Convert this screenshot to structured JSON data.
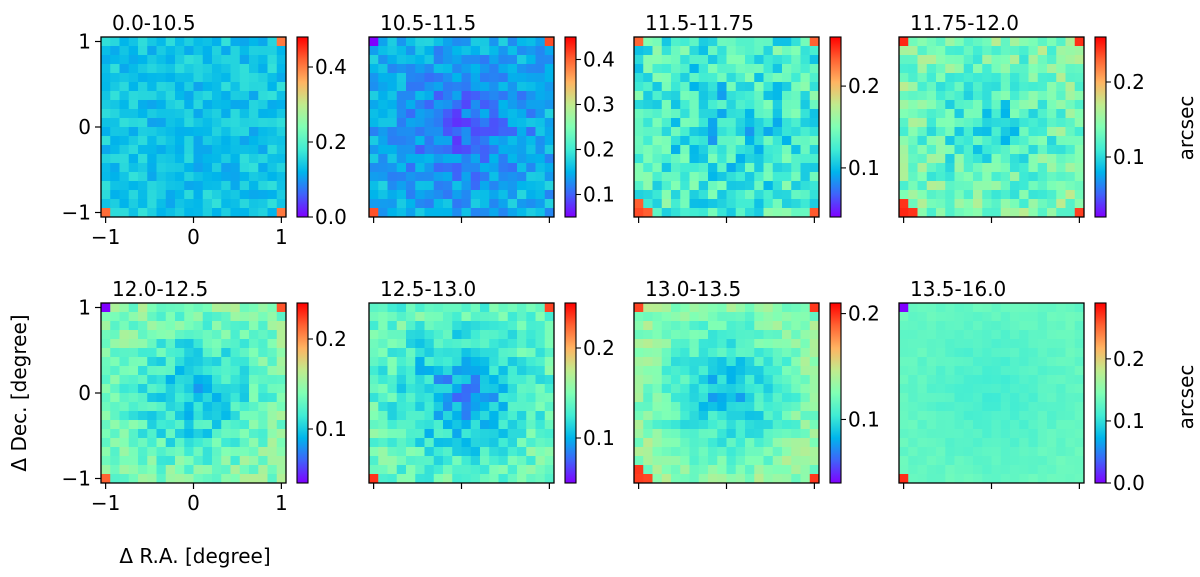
{
  "figure": {
    "xlabel": "Δ R.A. [degree]",
    "ylabel": "Δ Dec. [degree]",
    "colorbar_label": "arcsec"
  },
  "chart_data": [
    {
      "type": "heatmap",
      "title": "0.0-10.5",
      "grid": [
        20,
        20
      ],
      "xlim": [
        -1.05,
        1.05
      ],
      "ylim": [
        -1.05,
        1.05
      ],
      "xticks": [
        "−1",
        "0",
        "1"
      ],
      "yticks": [
        "1",
        "0",
        "−1"
      ],
      "color_range": [
        0.0,
        0.48
      ],
      "colorbar_ticks": [
        {
          "v": 0.0,
          "t": "0.0"
        },
        {
          "v": 0.2,
          "t": "0.2"
        },
        {
          "v": 0.4,
          "t": "0.4"
        }
      ],
      "typical_value": 0.14,
      "center_value": 0.13,
      "spread": 0.03,
      "hot_corner": 0.42,
      "hot_cells": 3,
      "cold_cells": 3
    },
    {
      "type": "heatmap",
      "title": "10.5-11.5",
      "grid": [
        20,
        20
      ],
      "xticks": [
        "",
        "",
        ""
      ],
      "yticks": [],
      "color_range": [
        0.05,
        0.45
      ],
      "colorbar_ticks": [
        {
          "v": 0.1,
          "t": "0.1"
        },
        {
          "v": 0.2,
          "t": "0.2"
        },
        {
          "v": 0.3,
          "t": "0.3"
        },
        {
          "v": 0.4,
          "t": "0.4"
        }
      ],
      "typical_value": 0.15,
      "center_value": 0.1,
      "spread": 0.03,
      "hot_corner": 0.42,
      "hot_cells": 2,
      "cold_cells": 2
    },
    {
      "type": "heatmap",
      "title": "11.5-11.75",
      "grid": [
        20,
        20
      ],
      "xticks": [
        "",
        "",
        ""
      ],
      "yticks": [],
      "color_range": [
        0.04,
        0.26
      ],
      "colorbar_ticks": [
        {
          "v": 0.1,
          "t": "0.1"
        },
        {
          "v": 0.2,
          "t": "0.2"
        }
      ],
      "typical_value": 0.13,
      "center_value": 0.11,
      "spread": 0.03,
      "hot_corner": 0.24,
      "hot_cells": 6,
      "cold_cells": 2
    },
    {
      "type": "heatmap",
      "title": "11.75-12.0",
      "grid": [
        20,
        20
      ],
      "xticks": [
        "",
        "",
        ""
      ],
      "yticks": [],
      "color_range": [
        0.02,
        0.26
      ],
      "colorbar_ticks": [
        {
          "v": 0.1,
          "t": "0.1"
        },
        {
          "v": 0.2,
          "t": "0.2"
        }
      ],
      "typical_value": 0.14,
      "center_value": 0.1,
      "spread": 0.03,
      "hot_corner": 0.25,
      "hot_cells": 6,
      "cold_cells": 2
    },
    {
      "type": "heatmap",
      "title": "12.0-12.5",
      "grid": [
        20,
        20
      ],
      "xlim": [
        -1.05,
        1.05
      ],
      "ylim": [
        -1.05,
        1.05
      ],
      "xticks": [
        "−1",
        "0",
        "1"
      ],
      "yticks": [
        "1",
        "0",
        "−1"
      ],
      "color_range": [
        0.04,
        0.24
      ],
      "colorbar_ticks": [
        {
          "v": 0.1,
          "t": "0.1"
        },
        {
          "v": 0.2,
          "t": "0.2"
        }
      ],
      "typical_value": 0.14,
      "center_value": 0.09,
      "spread": 0.02,
      "hot_corner": 0.22,
      "hot_cells": 2,
      "cold_cells": 3
    },
    {
      "type": "heatmap",
      "title": "12.5-13.0",
      "grid": [
        20,
        20
      ],
      "xticks": [
        "",
        "",
        ""
      ],
      "yticks": [],
      "color_range": [
        0.05,
        0.25
      ],
      "colorbar_ticks": [
        {
          "v": 0.1,
          "t": "0.1"
        },
        {
          "v": 0.2,
          "t": "0.2"
        }
      ],
      "typical_value": 0.14,
      "center_value": 0.09,
      "spread": 0.02,
      "hot_corner": 0.24,
      "hot_cells": 2,
      "cold_cells": 2
    },
    {
      "type": "heatmap",
      "title": "13.0-13.5",
      "grid": [
        20,
        20
      ],
      "xticks": [
        "",
        "",
        ""
      ],
      "yticks": [],
      "color_range": [
        0.04,
        0.21
      ],
      "colorbar_ticks": [
        {
          "v": 0.1,
          "t": "0.1"
        },
        {
          "v": 0.2,
          "t": "0.2"
        }
      ],
      "typical_value": 0.13,
      "center_value": 0.08,
      "spread": 0.015,
      "hot_corner": 0.2,
      "hot_cells": 6,
      "cold_cells": 2
    },
    {
      "type": "heatmap",
      "title": "13.5-16.0",
      "grid": [
        20,
        20
      ],
      "xticks": [
        "",
        "",
        ""
      ],
      "yticks": [],
      "color_range": [
        0.0,
        0.29
      ],
      "colorbar_ticks": [
        {
          "v": 0.0,
          "t": "0.0"
        },
        {
          "v": 0.1,
          "t": "0.1"
        },
        {
          "v": 0.2,
          "t": "0.2"
        }
      ],
      "typical_value": 0.13,
      "center_value": 0.11,
      "spread": 0.006,
      "hot_corner": 0.28,
      "hot_cells": 1,
      "cold_cells": 2
    }
  ]
}
